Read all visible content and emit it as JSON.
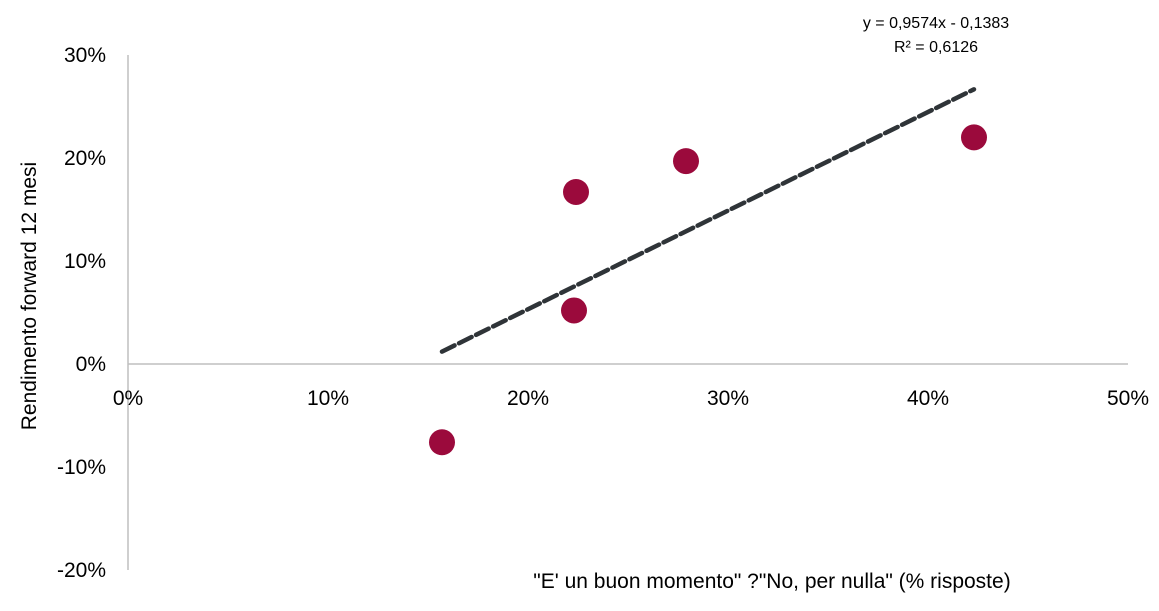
{
  "chart_data": {
    "type": "scatter",
    "xlabel": "\"E' un buon momento\" ?\"No, per nulla\" (% risposte)",
    "ylabel": "Rendimento forward 12 mesi",
    "xlim": [
      0,
      0.5
    ],
    "ylim": [
      -0.2,
      0.3
    ],
    "x_ticks": [
      0,
      0.1,
      0.2,
      0.3,
      0.4,
      0.5
    ],
    "x_tick_labels": [
      "0%",
      "10%",
      "20%",
      "30%",
      "40%",
      "50%"
    ],
    "y_ticks": [
      -0.2,
      -0.1,
      0,
      0.1,
      0.2,
      0.3
    ],
    "y_tick_labels": [
      "-20%",
      "-10%",
      "0%",
      "10%",
      "20%",
      "30%"
    ],
    "series": [
      {
        "points": [
          {
            "x": 0.157,
            "y": -0.076
          },
          {
            "x": 0.223,
            "y": 0.052
          },
          {
            "x": 0.224,
            "y": 0.167
          },
          {
            "x": 0.279,
            "y": 0.197
          },
          {
            "x": 0.423,
            "y": 0.22
          }
        ]
      }
    ],
    "trendline": {
      "slope": 0.9574,
      "intercept": -0.1383,
      "x_range": [
        0.157,
        0.423
      ],
      "equation": "y = 0,9574x - 0,1383",
      "r_squared": "R² = 0,6126",
      "style": "dashed"
    },
    "grid": false,
    "legend": "none",
    "colors": {
      "point": "#9b0a3c",
      "trendline": "#2f3438",
      "axis": "#bfbfbf"
    }
  }
}
